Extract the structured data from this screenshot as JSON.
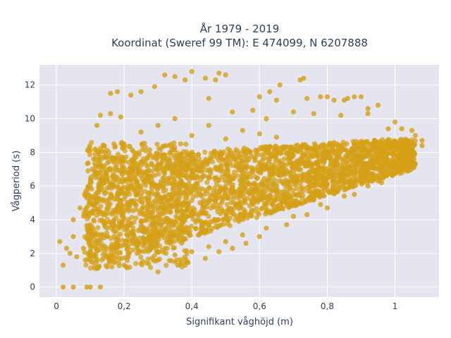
{
  "chart_data": {
    "type": "scatter",
    "title_line1": "År 1979 - 2019",
    "title_line2": "Koordinat (Sweref 99 TM): E 474099, N 6207888",
    "xlabel": "Signifikant våghöjd (m)",
    "ylabel": "Vågperiod (s)",
    "xlim": [
      -0.05,
      1.13
    ],
    "ylim": [
      -0.6,
      13.2
    ],
    "x_ticks": [
      0,
      0.2,
      0.4,
      0.6,
      0.8,
      1
    ],
    "x_tick_labels": [
      "0",
      "0,2",
      "0,4",
      "0,6",
      "0,8",
      "1"
    ],
    "y_ticks": [
      0,
      2,
      4,
      6,
      8,
      10,
      12
    ],
    "y_tick_labels": [
      "0",
      "2",
      "4",
      "6",
      "8",
      "10",
      "12"
    ],
    "grid": true,
    "background_color": "#e5e5ef",
    "marker_color": "#d4a017",
    "points": [
      [
        0.01,
        2.7
      ],
      [
        0.02,
        1.3
      ],
      [
        0.03,
        2.3
      ],
      [
        0.02,
        0.0
      ],
      [
        0.05,
        0.0
      ],
      [
        0.09,
        0.0
      ],
      [
        0.1,
        0.0
      ],
      [
        0.13,
        0.0
      ],
      [
        0.05,
        4.0
      ],
      [
        0.07,
        4.7
      ],
      [
        0.09,
        5.3
      ],
      [
        0.1,
        3.7
      ],
      [
        0.05,
        3.0
      ],
      [
        0.04,
        2.0
      ],
      [
        0.06,
        1.8
      ],
      [
        0.08,
        2.3
      ],
      [
        0.1,
        6.2
      ],
      [
        0.11,
        7.6
      ],
      [
        0.1,
        8.1
      ],
      [
        0.12,
        9.6
      ],
      [
        0.13,
        10.2
      ],
      [
        0.16,
        10.3
      ],
      [
        0.19,
        10.1
      ],
      [
        0.16,
        11.5
      ],
      [
        0.18,
        11.6
      ],
      [
        0.22,
        11.4
      ],
      [
        0.25,
        11.6
      ],
      [
        0.29,
        11.9
      ],
      [
        0.32,
        12.6
      ],
      [
        0.35,
        12.5
      ],
      [
        0.38,
        12.3
      ],
      [
        0.4,
        12.8
      ],
      [
        0.44,
        12.4
      ],
      [
        0.47,
        12.3
      ],
      [
        0.48,
        12.7
      ],
      [
        0.5,
        12.6
      ],
      [
        0.45,
        11.2
      ],
      [
        0.52,
        10.4
      ],
      [
        0.58,
        10.5
      ],
      [
        0.62,
        10.0
      ],
      [
        0.6,
        11.3
      ],
      [
        0.63,
        11.6
      ],
      [
        0.65,
        11.1
      ],
      [
        0.66,
        12.0
      ],
      [
        0.72,
        12.3
      ],
      [
        0.73,
        12.4
      ],
      [
        0.74,
        11.2
      ],
      [
        0.78,
        11.3
      ],
      [
        0.8,
        11.3
      ],
      [
        0.82,
        11.1
      ],
      [
        0.85,
        11.1
      ],
      [
        0.86,
        11.2
      ],
      [
        0.88,
        11.3
      ],
      [
        0.9,
        11.3
      ],
      [
        0.92,
        10.6
      ],
      [
        0.95,
        10.8
      ],
      [
        0.7,
        10.4
      ],
      [
        0.76,
        10.3
      ],
      [
        0.84,
        10.2
      ],
      [
        0.92,
        10.3
      ],
      [
        0.98,
        9.4
      ],
      [
        1.0,
        9.8
      ],
      [
        1.02,
        9.4
      ],
      [
        1.05,
        9.3
      ],
      [
        1.06,
        9.0
      ],
      [
        1.08,
        8.7
      ],
      [
        1.08,
        8.4
      ],
      [
        1.05,
        8.1
      ],
      [
        1.03,
        7.6
      ],
      [
        0.99,
        6.9
      ],
      [
        0.95,
        6.3
      ],
      [
        0.92,
        6.0
      ],
      [
        0.85,
        5.4
      ],
      [
        0.78,
        4.9
      ],
      [
        0.7,
        4.2
      ],
      [
        0.62,
        3.5
      ],
      [
        0.55,
        3.1
      ],
      [
        0.5,
        2.7
      ],
      [
        0.45,
        2.4
      ],
      [
        0.4,
        2.1
      ],
      [
        0.35,
        1.9
      ],
      [
        0.3,
        1.6
      ],
      [
        0.25,
        1.4
      ],
      [
        0.2,
        1.3
      ],
      [
        0.15,
        1.2
      ],
      [
        0.12,
        1.1
      ],
      [
        0.3,
        0.9
      ],
      [
        0.35,
        1.5
      ],
      [
        0.38,
        1.3
      ],
      [
        0.44,
        1.7
      ],
      [
        0.48,
        2.1
      ],
      [
        0.52,
        2.3
      ],
      [
        0.56,
        2.6
      ],
      [
        0.6,
        3.0
      ],
      [
        0.68,
        3.7
      ],
      [
        0.74,
        4.3
      ],
      [
        0.8,
        4.7
      ],
      [
        0.88,
        5.5
      ],
      [
        0.96,
        6.2
      ],
      [
        1.0,
        7.0
      ],
      [
        0.15,
        3.0
      ],
      [
        0.2,
        4.5
      ],
      [
        0.25,
        6.0
      ],
      [
        0.3,
        7.0
      ],
      [
        0.35,
        5.0
      ],
      [
        0.4,
        6.5
      ],
      [
        0.45,
        7.5
      ],
      [
        0.5,
        5.5
      ],
      [
        0.55,
        6.8
      ],
      [
        0.6,
        7.4
      ],
      [
        0.65,
        5.8
      ],
      [
        0.7,
        7.2
      ],
      [
        0.75,
        6.6
      ],
      [
        0.8,
        7.9
      ],
      [
        0.85,
        7.0
      ],
      [
        0.9,
        8.2
      ],
      [
        0.95,
        7.6
      ],
      [
        0.2,
        8.5
      ],
      [
        0.25,
        9.2
      ],
      [
        0.3,
        9.6
      ],
      [
        0.35,
        10.0
      ],
      [
        0.4,
        9.0
      ],
      [
        0.45,
        9.6
      ],
      [
        0.5,
        8.8
      ],
      [
        0.55,
        9.3
      ],
      [
        0.6,
        9.1
      ],
      [
        0.65,
        8.9
      ],
      [
        0.15,
        6.5
      ],
      [
        0.12,
        5.0
      ],
      [
        0.18,
        2.5
      ],
      [
        0.22,
        2.8
      ],
      [
        0.28,
        3.3
      ],
      [
        0.33,
        3.6
      ],
      [
        0.38,
        4.1
      ],
      [
        0.43,
        4.4
      ],
      [
        0.47,
        8.0
      ]
    ]
  }
}
